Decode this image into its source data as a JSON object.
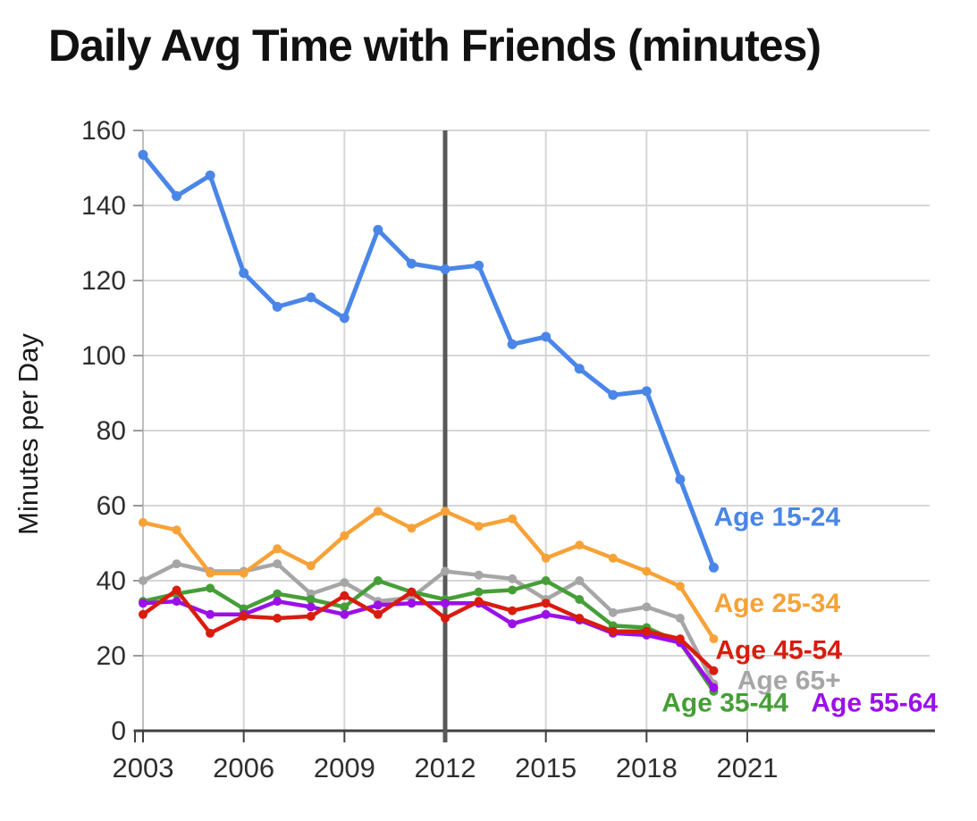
{
  "chart_data": {
    "type": "line",
    "title": "Daily Avg Time with Friends (minutes)",
    "ylabel": "Minutes per Day",
    "xlabel": "",
    "x": [
      2003,
      2004,
      2005,
      2006,
      2007,
      2008,
      2009,
      2010,
      2011,
      2012,
      2013,
      2014,
      2015,
      2016,
      2017,
      2018,
      2019,
      2020
    ],
    "xticks": [
      2003,
      2006,
      2009,
      2012,
      2015,
      2018,
      2021
    ],
    "yticks": [
      0,
      20,
      40,
      60,
      80,
      100,
      120,
      140,
      160
    ],
    "xlim": [
      2003,
      2021
    ],
    "ylim": [
      0,
      160
    ],
    "grid": true,
    "legend_position": "right-of-line-ends",
    "annotation_line_x": 2012,
    "annotation_line_color": "#595959",
    "axis_color": "#404040",
    "gridline_color": "#d6d6d6",
    "tick_label_color": "#2e2e2e",
    "series": [
      {
        "name": "Age 65+",
        "color": "#a6a6a6",
        "values": [
          40,
          44.5,
          42.5,
          42.5,
          44.5,
          36.5,
          39.5,
          34.5,
          35.5,
          42.5,
          41.5,
          40.5,
          35,
          40,
          31.5,
          33,
          30,
          12.5
        ],
        "label": "Age 65+",
        "label_x": 2020.7,
        "label_y": 13
      },
      {
        "name": "Age 35-44",
        "color": "#469e37",
        "values": [
          34.5,
          36.5,
          38,
          32.5,
          36.5,
          35,
          33,
          40,
          37,
          35,
          37,
          37.5,
          40,
          35,
          28,
          27.5,
          23.5,
          10.5
        ],
        "label": "Age 35-44",
        "label_x": 2018.45,
        "label_y": 7
      },
      {
        "name": "Age 55-64",
        "color": "#9b10e8",
        "values": [
          34,
          34.5,
          31,
          31,
          34.5,
          33,
          31,
          33.5,
          34,
          34,
          34,
          28.5,
          31,
          29.5,
          26,
          25.5,
          23.5,
          11.5
        ],
        "label": "Age 55-64",
        "label_x": 2022.9,
        "label_y": 7
      },
      {
        "name": "Age 45-54",
        "color": "#d91c0e",
        "values": [
          31,
          37.5,
          26,
          30.5,
          30,
          30.5,
          36,
          31,
          37,
          30,
          34.5,
          32,
          34,
          30,
          26.5,
          26.5,
          24.5,
          16
        ],
        "label": "Age 45-54",
        "label_x": 2020.05,
        "label_y": 21
      },
      {
        "name": "Age 25-34",
        "color": "#f7a237",
        "values": [
          55.5,
          53.5,
          42,
          42,
          48.5,
          44,
          52,
          58.5,
          54,
          58.5,
          54.5,
          56.5,
          46,
          49.5,
          46,
          42.5,
          38.5,
          24.5
        ],
        "label": "Age 25-34",
        "label_x": 2020.0,
        "label_y": 33.5
      },
      {
        "name": "Age 15-24",
        "color": "#4a86e8",
        "values": [
          153.5,
          142.5,
          148,
          122,
          113,
          115.5,
          110,
          133.5,
          124.5,
          123,
          124,
          103,
          105,
          96.5,
          89.5,
          90.5,
          67,
          43.5
        ],
        "label": "Age 15-24",
        "label_x": 2020.0,
        "label_y": 56.5
      }
    ]
  }
}
